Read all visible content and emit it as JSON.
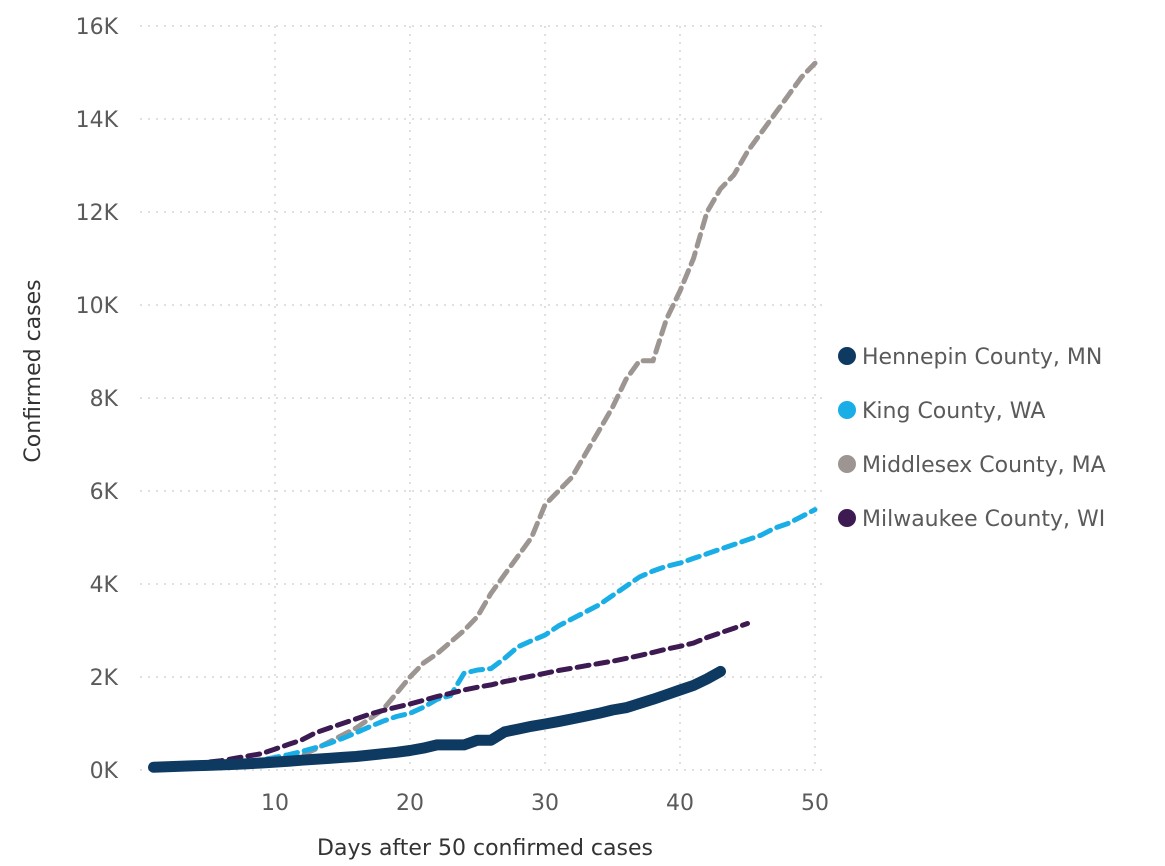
{
  "chart_data": {
    "type": "line",
    "title": "",
    "xlabel": "Days after 50 confirmed cases",
    "ylabel": "Confirmed cases",
    "xlim": [
      0,
      50
    ],
    "ylim": [
      0,
      16000
    ],
    "x_ticks": [
      10,
      20,
      30,
      40,
      50
    ],
    "y_ticks": [
      0,
      2000,
      4000,
      6000,
      8000,
      10000,
      12000,
      14000,
      16000
    ],
    "x_tick_labels": [
      "10",
      "20",
      "30",
      "40",
      "50"
    ],
    "y_tick_labels": [
      "0K",
      "2K",
      "4K",
      "6K",
      "8K",
      "10K",
      "12K",
      "14K",
      "16K"
    ],
    "grid": true,
    "grid_axis": "x",
    "legend": "right",
    "series": [
      {
        "name": "Hennepin County, MN",
        "color": "#0e3a62",
        "style": "solid",
        "x": [
          1,
          2,
          3,
          4,
          5,
          6,
          7,
          8,
          9,
          10,
          11,
          12,
          13,
          14,
          15,
          16,
          17,
          18,
          19,
          20,
          21,
          22,
          23,
          24,
          25,
          26,
          27,
          28,
          29,
          30,
          31,
          32,
          33,
          34,
          35,
          36,
          37,
          38,
          39,
          40,
          41,
          42,
          43
        ],
        "y": [
          60,
          70,
          80,
          90,
          100,
          110,
          120,
          135,
          150,
          170,
          190,
          210,
          230,
          250,
          270,
          290,
          320,
          350,
          380,
          420,
          470,
          540,
          540,
          540,
          640,
          640,
          820,
          880,
          940,
          990,
          1040,
          1100,
          1160,
          1220,
          1290,
          1340,
          1430,
          1520,
          1620,
          1720,
          1820,
          1960,
          2120
        ]
      },
      {
        "name": "King County, WA",
        "color": "#1aaee6",
        "style": "dashed",
        "x": [
          1,
          2,
          3,
          4,
          5,
          6,
          7,
          8,
          9,
          10,
          11,
          12,
          13,
          14,
          15,
          16,
          17,
          18,
          19,
          20,
          21,
          22,
          23,
          24,
          25,
          26,
          27,
          28,
          29,
          30,
          31,
          32,
          33,
          34,
          35,
          36,
          37,
          38,
          39,
          40,
          41,
          42,
          43,
          44,
          45,
          46,
          47,
          48,
          49,
          50
        ],
        "y": [
          60,
          65,
          75,
          85,
          100,
          120,
          150,
          180,
          220,
          270,
          330,
          400,
          480,
          570,
          680,
          800,
          930,
          1050,
          1150,
          1220,
          1350,
          1520,
          1600,
          2080,
          2150,
          2180,
          2400,
          2650,
          2780,
          2900,
          3100,
          3250,
          3400,
          3550,
          3750,
          3950,
          4150,
          4280,
          4380,
          4450,
          4550,
          4650,
          4750,
          4850,
          4950,
          5050,
          5200,
          5300,
          5450,
          5600
        ]
      },
      {
        "name": "Middlesex County, MA",
        "color": "#9d9592",
        "style": "dashed",
        "x": [
          1,
          2,
          3,
          4,
          5,
          6,
          7,
          8,
          9,
          10,
          11,
          12,
          13,
          14,
          15,
          16,
          17,
          18,
          19,
          20,
          21,
          22,
          23,
          24,
          25,
          26,
          27,
          28,
          29,
          30,
          31,
          32,
          33,
          34,
          35,
          36,
          37,
          38,
          39,
          40,
          41,
          42,
          43,
          44,
          45,
          46,
          47,
          48,
          49,
          50
        ],
        "y": [
          50,
          55,
          60,
          70,
          80,
          95,
          110,
          130,
          150,
          180,
          230,
          320,
          450,
          600,
          750,
          900,
          1100,
          1300,
          1650,
          2000,
          2300,
          2500,
          2750,
          3000,
          3300,
          3800,
          4200,
          4600,
          5000,
          5700,
          6000,
          6300,
          6800,
          7300,
          7800,
          8400,
          8800,
          8800,
          9700,
          10300,
          11000,
          12000,
          12500,
          12800,
          13300,
          13700,
          14100,
          14500,
          14900,
          15200
        ]
      },
      {
        "name": "Milwaukee County, WI",
        "color": "#3d1a52",
        "style": "dashed",
        "x": [
          1,
          2,
          3,
          4,
          5,
          6,
          7,
          8,
          9,
          10,
          11,
          12,
          13,
          14,
          15,
          16,
          17,
          18,
          19,
          20,
          21,
          22,
          23,
          24,
          25,
          26,
          27,
          28,
          29,
          30,
          31,
          32,
          33,
          34,
          35,
          36,
          37,
          38,
          39,
          40,
          41,
          42,
          43,
          44,
          45
        ],
        "y": [
          80,
          100,
          120,
          140,
          170,
          200,
          250,
          300,
          350,
          450,
          550,
          650,
          800,
          900,
          1000,
          1100,
          1200,
          1280,
          1350,
          1420,
          1500,
          1580,
          1650,
          1720,
          1780,
          1830,
          1900,
          1960,
          2020,
          2080,
          2140,
          2190,
          2240,
          2290,
          2340,
          2400,
          2460,
          2530,
          2600,
          2660,
          2730,
          2850,
          2950,
          3050,
          3150
        ]
      }
    ]
  }
}
